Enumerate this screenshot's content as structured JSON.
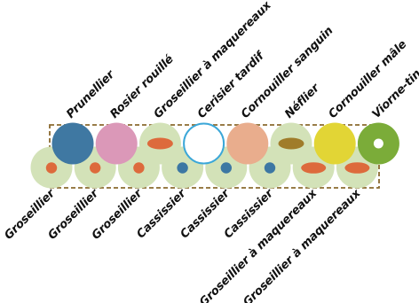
{
  "hedge": {
    "colors": {
      "frame": "#8b6a2f",
      "pale_green": "#d3e2b8",
      "dot_orange": "#dd6a3c",
      "dot_blue": "#3c77a3",
      "prunellier": "#3f78a2",
      "rosier_rouille": "#db98b8",
      "cerisier_outline": "#3ba7d8",
      "cornouiller_sanguin": "#e9ad8d",
      "neflier_oval": "#a07c2a",
      "cornouiller_male": "#e2d535",
      "viorne_tin": "#7bac39"
    },
    "top_row": [
      {
        "label": "Prunellier",
        "symbol": "solid-circle",
        "fill": "#3f78a2"
      },
      {
        "label": "Rosier rouillé",
        "symbol": "solid-circle",
        "fill": "#db98b8"
      },
      {
        "label": "Groseillier à maquereaux",
        "symbol": "oval-on-pale",
        "fill": "#dd6a3c"
      },
      {
        "label": "Cerisier tardif",
        "symbol": "outlined-circle",
        "fill": "#3ba7d8"
      },
      {
        "label": "Cornouiller sanguin",
        "symbol": "solid-circle",
        "fill": "#e9ad8d"
      },
      {
        "label": "Néflier",
        "symbol": "oval-on-pale",
        "fill": "#a07c2a"
      },
      {
        "label": "Cornouiller mâle",
        "symbol": "solid-circle",
        "fill": "#e2d535"
      },
      {
        "label": "Viorne-tin",
        "symbol": "ring-circle",
        "fill": "#7bac39"
      }
    ],
    "bottom_row": [
      {
        "label": "Groseillier",
        "symbol": "dot-on-pale",
        "fill": "#dd6a3c"
      },
      {
        "label": "Groseillier",
        "symbol": "dot-on-pale",
        "fill": "#dd6a3c"
      },
      {
        "label": "Groseillier",
        "symbol": "dot-on-pale",
        "fill": "#dd6a3c"
      },
      {
        "label": "Cassissier",
        "symbol": "dot-on-pale",
        "fill": "#3c77a3"
      },
      {
        "label": "Cassissier",
        "symbol": "dot-on-pale",
        "fill": "#3c77a3"
      },
      {
        "label": "Cassissier",
        "symbol": "dot-on-pale",
        "fill": "#3c77a3"
      },
      {
        "label": "Groseillier à maquereaux",
        "symbol": "oval-on-pale",
        "fill": "#dd6a3c"
      },
      {
        "label": "Groseillier à maquereaux",
        "symbol": "oval-on-pale",
        "fill": "#dd6a3c"
      }
    ]
  }
}
